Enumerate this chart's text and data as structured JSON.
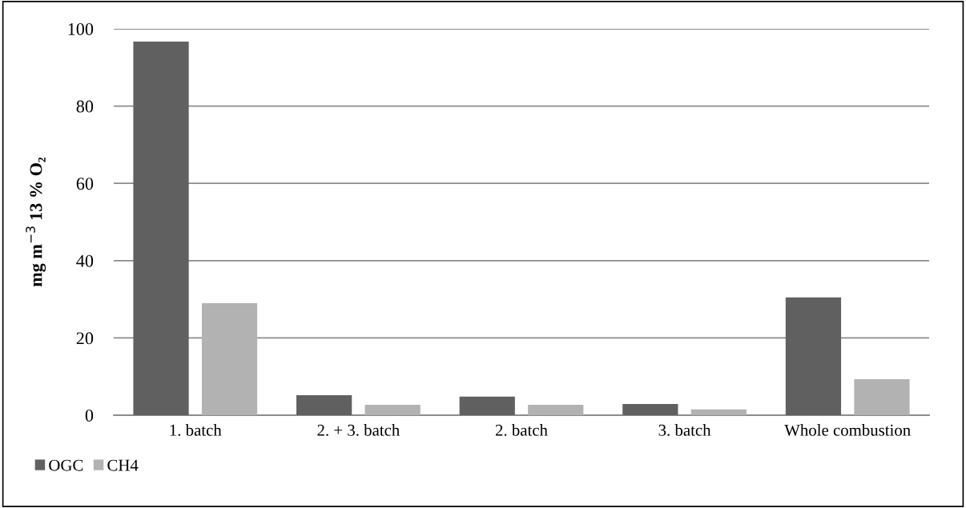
{
  "chart_data": {
    "type": "bar",
    "ylabel": "mg m$^{−3}$ 13 % O₂",
    "categories": [
      "1. batch",
      "2. + 3. batch",
      "2. batch",
      "3. batch",
      "Whole combustion"
    ],
    "series": [
      {
        "name": "OGC",
        "color": "#606060",
        "values": [
          96.7,
          5.2,
          4.8,
          2.9,
          30.5
        ]
      },
      {
        "name": "CH4",
        "color": "#b2b2b2",
        "values": [
          29.0,
          2.7,
          2.7,
          1.5,
          9.3
        ]
      }
    ],
    "ylim": [
      0,
      100
    ],
    "yticks": [
      0,
      20,
      40,
      60,
      80,
      100
    ],
    "grid": "y",
    "legend": "bottom left"
  }
}
